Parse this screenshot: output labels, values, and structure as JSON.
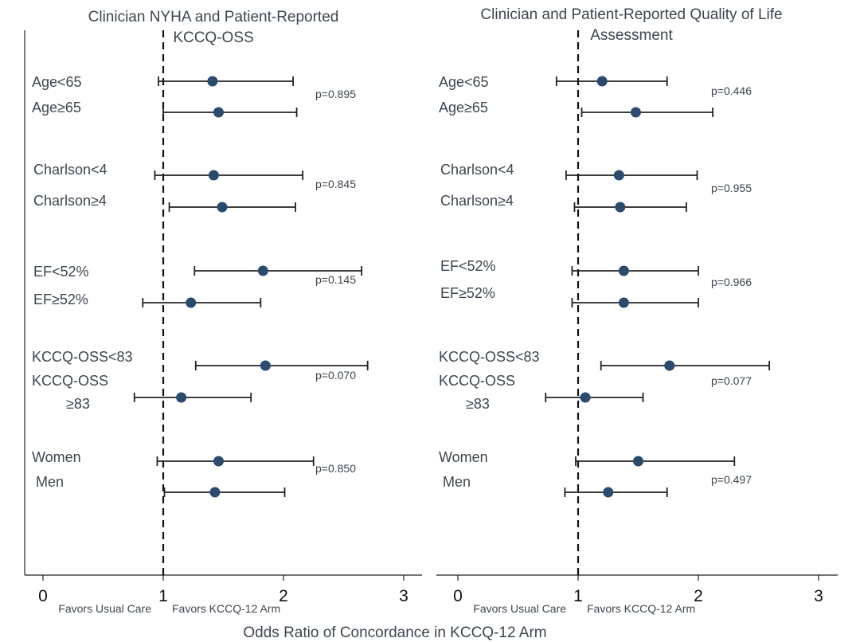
{
  "chart_data": [
    {
      "type": "forest",
      "title": "Clinician NYHA and Patient-Reported KCCQ-OSS",
      "title_lines": [
        "Clinician NYHA and Patient-Reported",
        "KCCQ-OSS"
      ],
      "xlim": [
        0,
        3.2
      ],
      "x_ticks": [
        0,
        1,
        2,
        3
      ],
      "x_tick_labels": [
        "0",
        "1",
        "2",
        "3"
      ],
      "reference_line": 1,
      "favors_left": "Favors Usual Care",
      "favors_right": "Favors KCCQ-12 Arm",
      "groups": [
        {
          "p_value": "p=0.895",
          "rows": [
            {
              "label": "Age<65",
              "or": 1.41,
              "lo": 0.96,
              "hi": 2.08
            },
            {
              "label": "Age≥65",
              "or": 1.46,
              "lo": 1.0,
              "hi": 2.11
            }
          ]
        },
        {
          "p_value": "p=0.845",
          "rows": [
            {
              "label": "Charlson<4",
              "or": 1.42,
              "lo": 0.93,
              "hi": 2.16
            },
            {
              "label": "Charlson≥4",
              "or": 1.49,
              "lo": 1.05,
              "hi": 2.1
            }
          ]
        },
        {
          "p_value": "p=0.145",
          "rows": [
            {
              "label": "EF<52%",
              "or": 1.83,
              "lo": 1.26,
              "hi": 2.65
            },
            {
              "label": "EF≥52%",
              "or": 1.23,
              "lo": 0.83,
              "hi": 1.81
            }
          ]
        },
        {
          "p_value": "p=0.070",
          "rows": [
            {
              "label": "KCCQ-OSS<83",
              "or": 1.85,
              "lo": 1.27,
              "hi": 2.7
            },
            {
              "label": "KCCQ-OSS ≥83",
              "label_lines": [
                "KCCQ-OSS",
                "≥83"
              ],
              "or": 1.15,
              "lo": 0.76,
              "hi": 1.73
            }
          ]
        },
        {
          "p_value": "p=0.850",
          "rows": [
            {
              "label": "Women",
              "or": 1.46,
              "lo": 0.95,
              "hi": 2.25
            },
            {
              "label": "Men",
              "or": 1.43,
              "lo": 1.01,
              "hi": 2.01
            }
          ]
        }
      ]
    },
    {
      "type": "forest",
      "title": "Clinician and Patient-Reported Quality of Life Assessment",
      "title_lines": [
        "Clinician and Patient-Reported Quality of Life",
        "Assessment"
      ],
      "xlim": [
        0,
        3.2
      ],
      "x_ticks": [
        0,
        1,
        2,
        3
      ],
      "x_tick_labels": [
        "0",
        "1",
        "2",
        "3"
      ],
      "reference_line": 1,
      "favors_left": "Favors Usual Care",
      "favors_right": "Favors KCCQ-12 Arm",
      "groups": [
        {
          "p_value": "p=0.446",
          "rows": [
            {
              "label": "Age<65",
              "or": 1.2,
              "lo": 0.82,
              "hi": 1.74
            },
            {
              "label": "Age≥65",
              "or": 1.48,
              "lo": 1.03,
              "hi": 2.12
            }
          ]
        },
        {
          "p_value": "p=0.955",
          "rows": [
            {
              "label": "Charlson<4",
              "or": 1.34,
              "lo": 0.9,
              "hi": 1.99
            },
            {
              "label": "Charlson≥4",
              "or": 1.35,
              "lo": 0.97,
              "hi": 1.9
            }
          ]
        },
        {
          "p_value": "p=0.966",
          "rows": [
            {
              "label": "EF<52%",
              "or": 1.38,
              "lo": 0.95,
              "hi": 2.0
            },
            {
              "label": "EF≥52%",
              "or": 1.38,
              "lo": 0.95,
              "hi": 2.0
            }
          ]
        },
        {
          "p_value": "p=0.077",
          "rows": [
            {
              "label": "KCCQ-OSS<83",
              "or": 1.76,
              "lo": 1.19,
              "hi": 2.59
            },
            {
              "label": "KCCQ-OSS ≥83",
              "label_lines": [
                "KCCQ-OSS",
                "≥83"
              ],
              "or": 1.06,
              "lo": 0.73,
              "hi": 1.54
            }
          ]
        },
        {
          "p_value": "p=0.497",
          "rows": [
            {
              "label": "Women",
              "or": 1.5,
              "lo": 0.98,
              "hi": 2.3
            },
            {
              "label": "Men",
              "or": 1.25,
              "lo": 0.89,
              "hi": 1.74
            }
          ]
        }
      ]
    }
  ],
  "x_axis_title": "Odds Ratio of Concordance in KCCQ-12 Arm",
  "colors": {
    "marker": "#2a4a6e",
    "line": "#222222",
    "text": "#3c4650"
  }
}
